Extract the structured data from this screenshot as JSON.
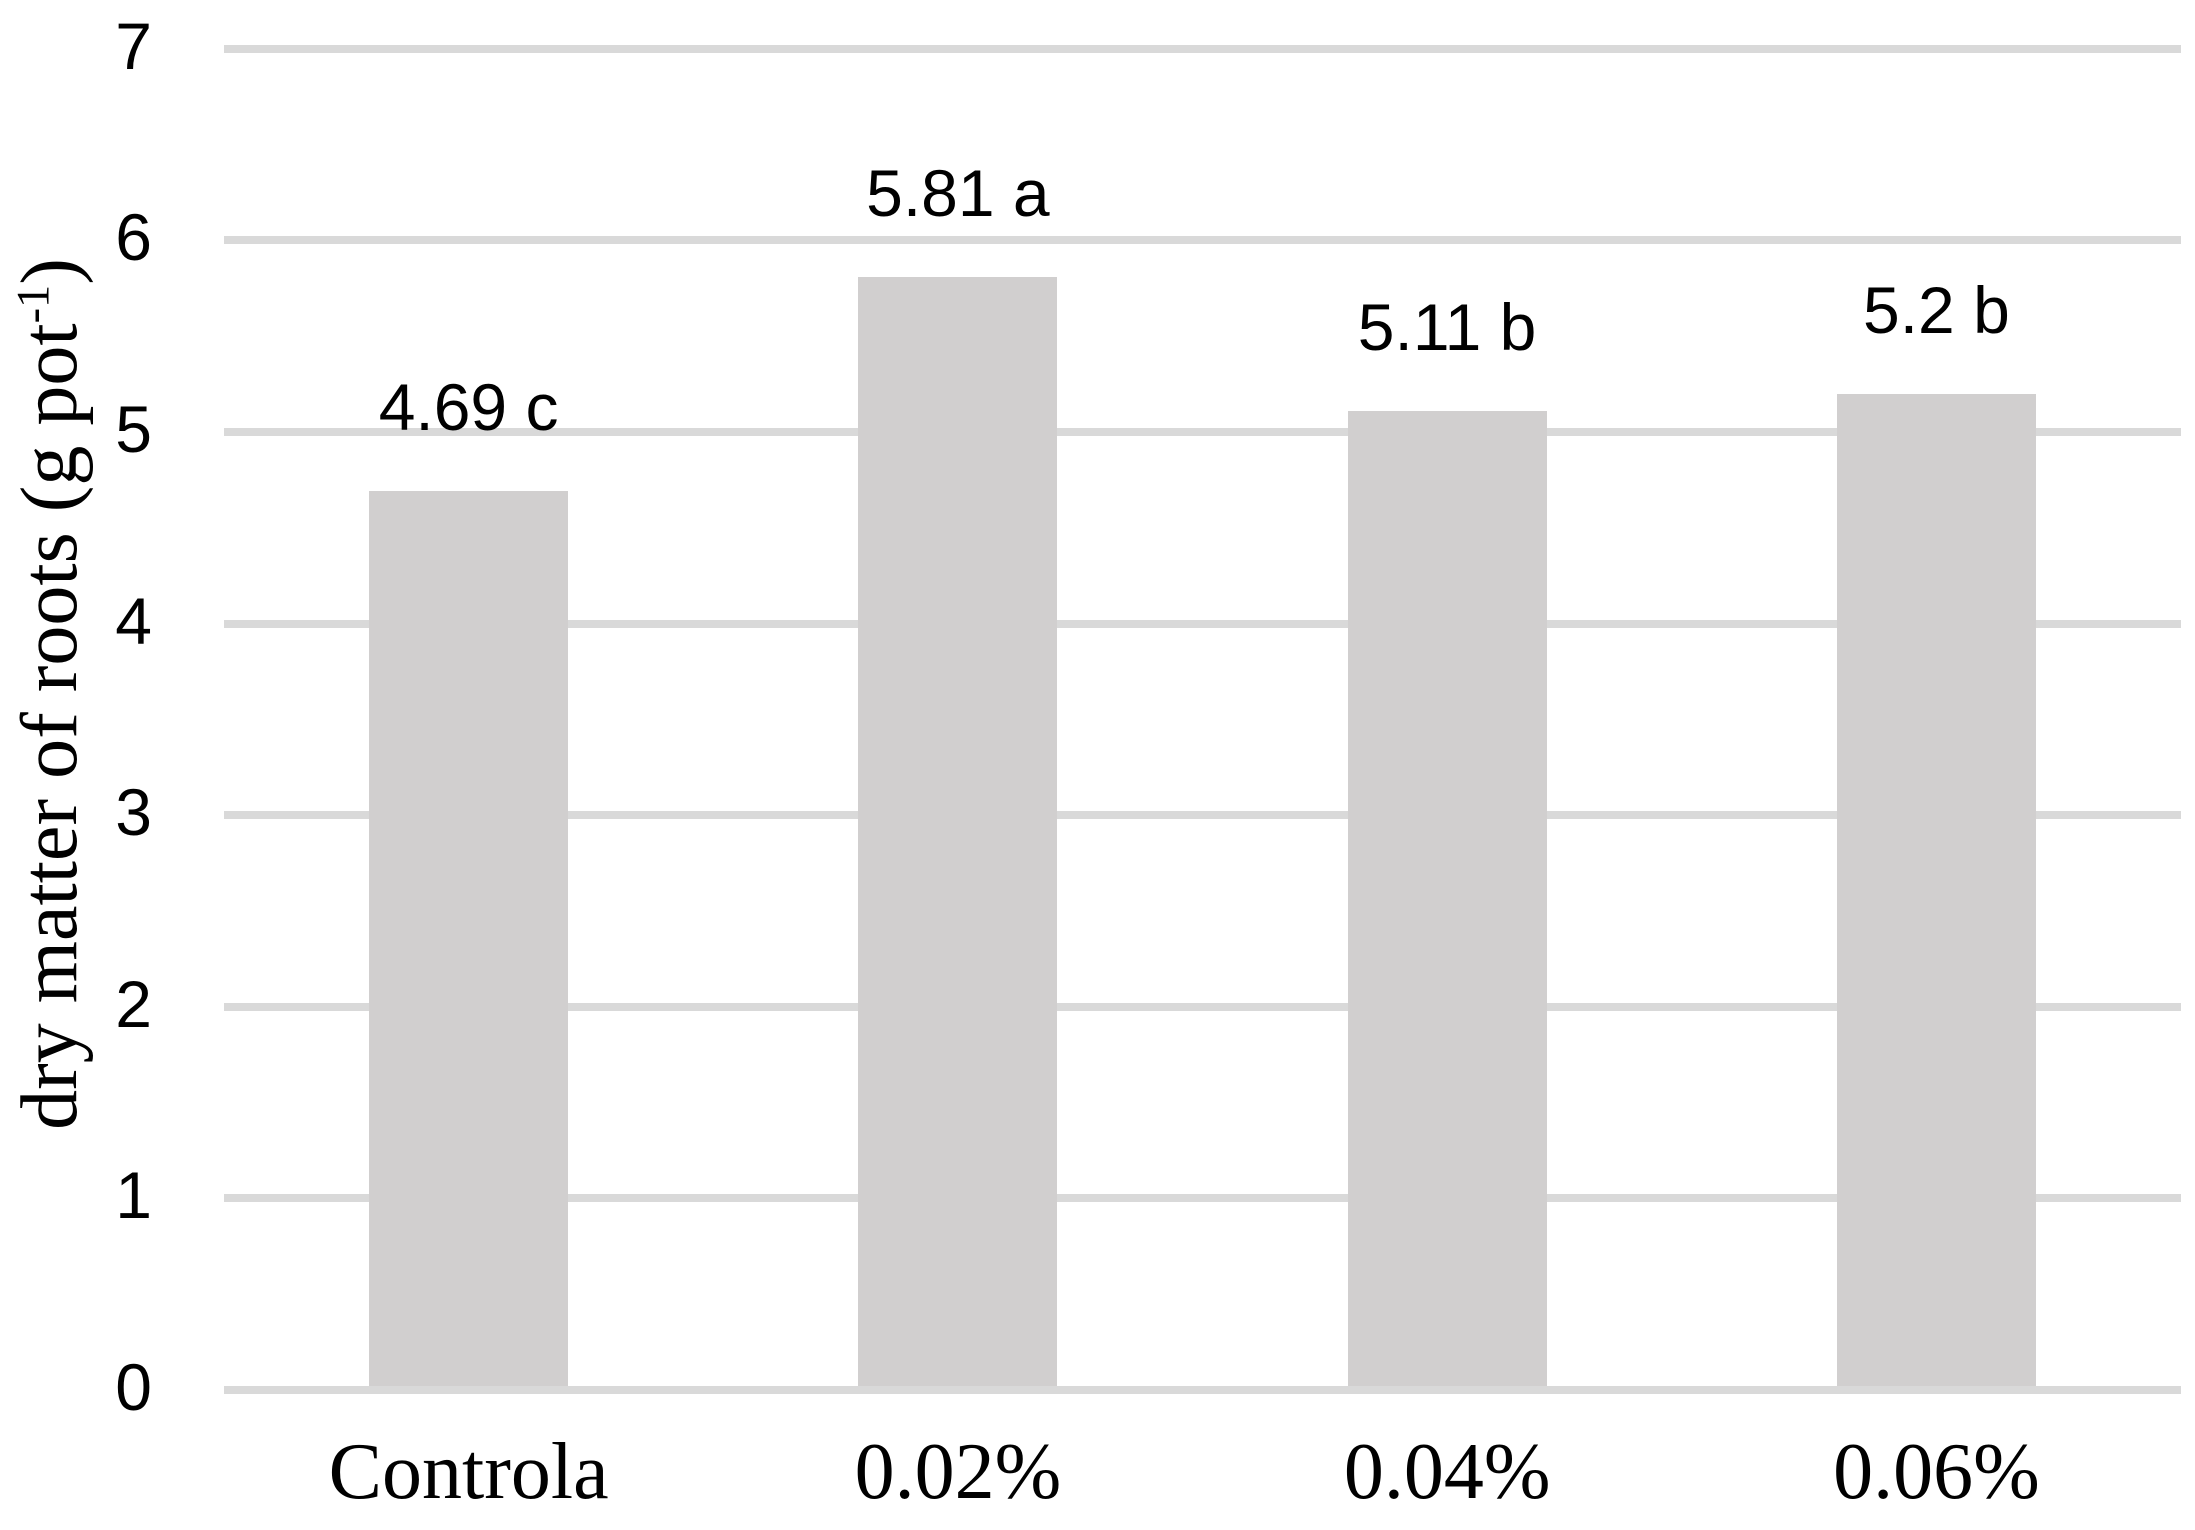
{
  "chart_data": {
    "type": "bar",
    "title": "",
    "categories": [
      "Controla",
      "0.02%",
      "0.04%",
      "0.06%"
    ],
    "values": [
      4.69,
      5.81,
      5.11,
      5.2
    ],
    "bar_labels": [
      "4.69 c",
      "5.81 a",
      "5.11 b",
      "5.2 b"
    ],
    "significance_letters": [
      "c",
      "a",
      "b",
      "b"
    ],
    "xlabel": "",
    "ylabel": "dry matter of roots (g pot-1)",
    "ylabel_parts": {
      "prefix": "dry matter of roots (g pot",
      "superscript": "-1",
      "suffix": ")"
    },
    "ylim": [
      0,
      7
    ],
    "yticks": [
      0,
      1,
      2,
      3,
      4,
      5,
      6,
      7
    ],
    "grid": "horizontal",
    "legend_position": "none",
    "colors": {
      "bar": "#d1cfcf",
      "gridline": "#d9d9d9",
      "text": "#000000",
      "background": "#ffffff"
    }
  }
}
